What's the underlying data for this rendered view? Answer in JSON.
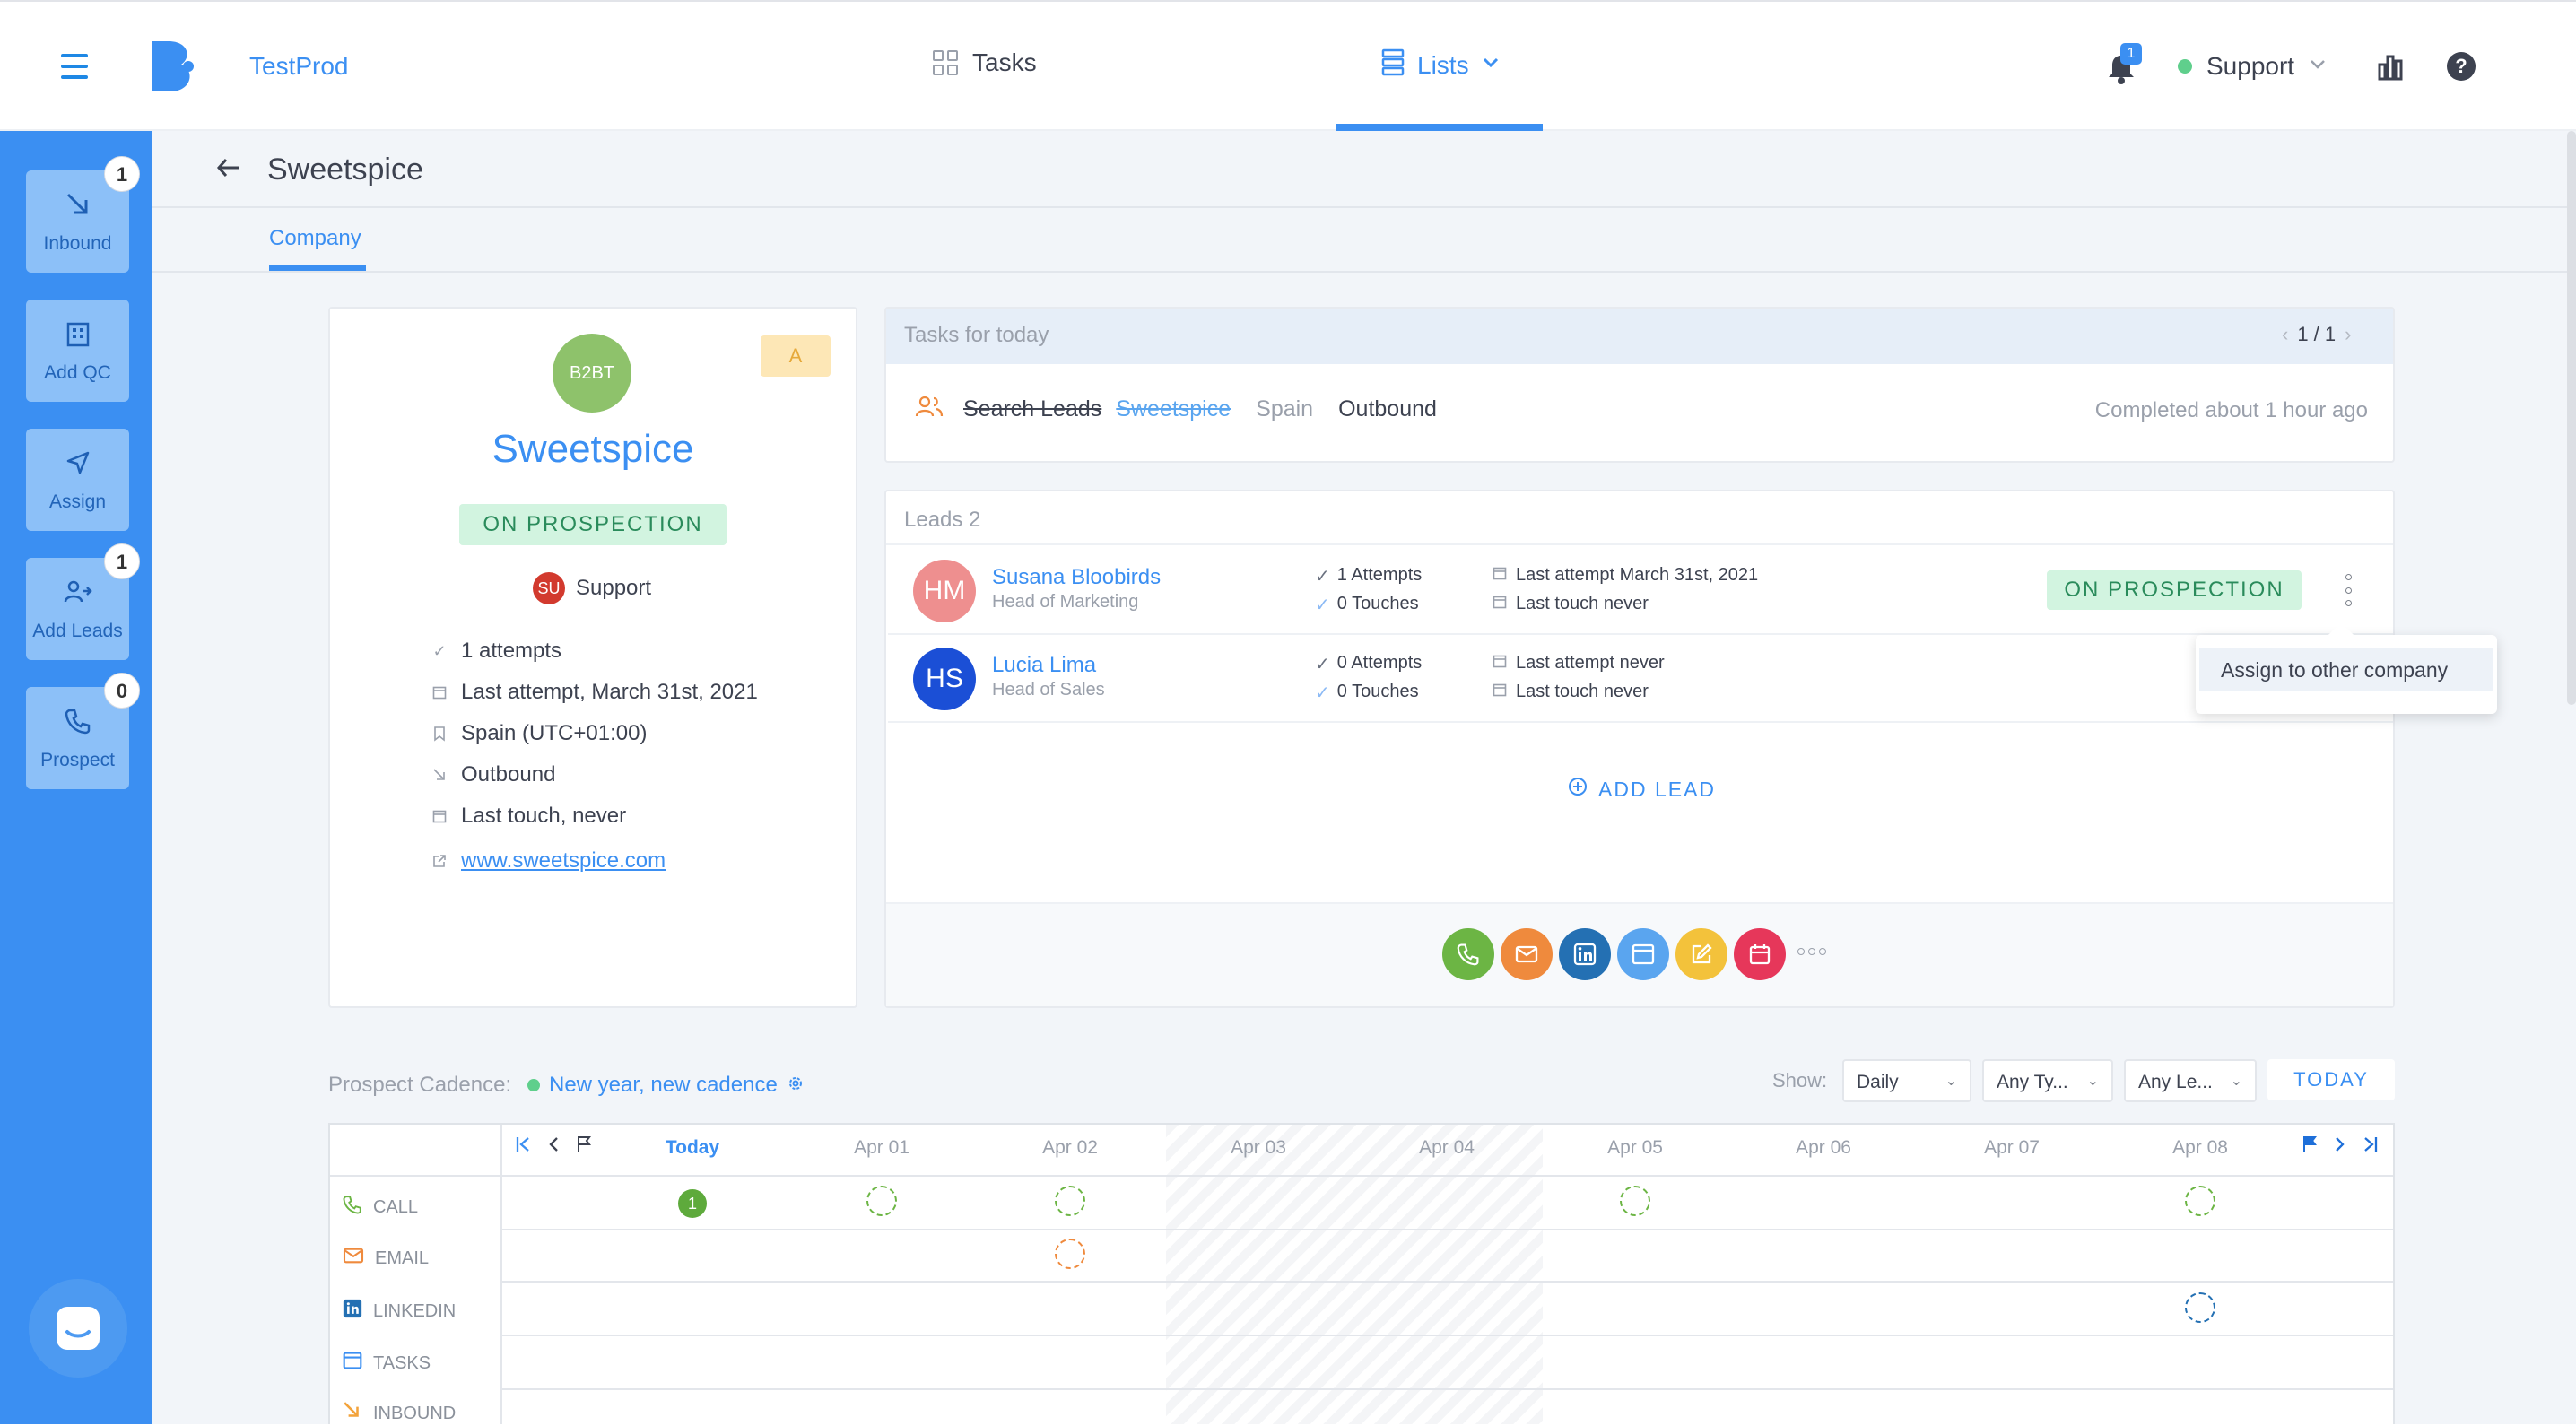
{
  "topbar": {
    "app_name": "TestProd",
    "nav": [
      {
        "label": "Tasks",
        "icon": "grid-icon",
        "active": false
      },
      {
        "label": "Lists",
        "icon": "list-icon",
        "active": true
      }
    ],
    "notification_count": "1",
    "user_status_color": "#5fcf8c",
    "user_label": "Support"
  },
  "sidebar": {
    "items": [
      {
        "label": "Inbound",
        "badge": "1",
        "icon": "inbound-arrow-icon"
      },
      {
        "label": "Add QC",
        "badge": "",
        "icon": "building-icon"
      },
      {
        "label": "Assign",
        "badge": "",
        "icon": "send-icon"
      },
      {
        "label": "Add Leads",
        "badge": "1",
        "icon": "add-user-icon"
      },
      {
        "label": "Prospect",
        "badge": "0",
        "icon": "phone-icon"
      }
    ]
  },
  "page": {
    "title": "Sweetspice",
    "subtab": "Company"
  },
  "company": {
    "initials": "B2BT",
    "rating": "A",
    "name": "Sweetspice",
    "status": "ON PROSPECTION",
    "owner_initials": "SU",
    "owner": "Support",
    "details": [
      {
        "icon": "check-icon",
        "text": "1 attempts"
      },
      {
        "icon": "calendar-icon",
        "text": "Last attempt, March 31st, 2021"
      },
      {
        "icon": "bookmark-icon",
        "text": "Spain (UTC+01:00)"
      },
      {
        "icon": "inbound-arrow-icon",
        "text": "Outbound"
      },
      {
        "icon": "calendar-icon",
        "text": "Last touch, never"
      }
    ],
    "website": "www.sweetspice.com"
  },
  "tasks": {
    "header": "Tasks for today",
    "pagination": "1 / 1",
    "task": {
      "type": "Search Leads",
      "company": "Sweetspice",
      "country": "Spain",
      "direction": "Outbound",
      "completed": "Completed about 1 hour ago"
    }
  },
  "leads": {
    "header": "Leads 2",
    "rows": [
      {
        "initials": "HM",
        "avatar_color": "#ee8f8f",
        "name": "Susana Bloobirds",
        "title": "Head of Marketing",
        "attempts": "1 Attempts",
        "touches": "0 Touches",
        "last_attempt": "Last attempt March 31st, 2021",
        "last_touch": "Last touch never",
        "status": "ON PROSPECTION"
      },
      {
        "initials": "HS",
        "avatar_color": "#1b4fd6",
        "name": "Lucia Lima",
        "title": "Head of Sales",
        "attempts": "0 Attempts",
        "touches": "0 Touches",
        "last_attempt": "Last attempt never",
        "last_touch": "Last touch never",
        "status": ""
      }
    ],
    "add_label": "ADD LEAD",
    "menu_item": "Assign to other company"
  },
  "actions": [
    {
      "icon": "phone-icon",
      "color": "#6cb544"
    },
    {
      "icon": "mail-icon",
      "color": "#ef8a3d"
    },
    {
      "icon": "linkedin-icon",
      "color": "#2470b3"
    },
    {
      "icon": "tasks-icon",
      "color": "#5aa5ef"
    },
    {
      "icon": "note-icon",
      "color": "#f3c23b"
    },
    {
      "icon": "calendar-icon",
      "color": "#e6375a"
    }
  ],
  "cadence": {
    "label": "Prospect Cadence:",
    "name": "New year, new cadence",
    "show_label": "Show:",
    "filters": [
      "Daily",
      "Any Ty...",
      "Any Le..."
    ],
    "today_button": "TODAY",
    "days": [
      "Today",
      "Apr 01",
      "Apr 02",
      "Apr 03",
      "Apr 04",
      "Apr 05",
      "Apr 06",
      "Apr 07",
      "Apr 08"
    ],
    "channels": [
      {
        "label": "CALL",
        "icon": "phone-icon",
        "color": "#6cb544"
      },
      {
        "label": "EMAIL",
        "icon": "mail-icon",
        "color": "#ef8a3d"
      },
      {
        "label": "LINKEDIN",
        "icon": "linkedin-icon",
        "color": "#2470b3"
      },
      {
        "label": "TASKS",
        "icon": "tasks-icon",
        "color": "#3b8ff2"
      },
      {
        "label": "INBOUND",
        "icon": "inbound-arrow-icon",
        "color": "#f3a33b"
      }
    ],
    "completed_count": "1"
  }
}
